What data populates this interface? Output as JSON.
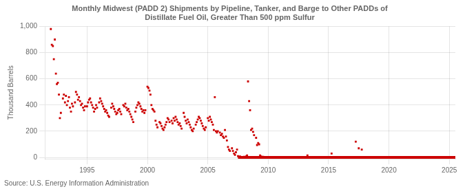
{
  "chart_data": {
    "type": "scatter",
    "title": "Monthly Midwest (PADD 2) Shipments by Pipeline, Tanker, and Barge to Other PADDs of\nDistillate Fuel Oil, Greater Than 500 ppm Sulfur",
    "ylabel": "Thousand Barrels",
    "source": "Source: U.S. Energy Information Administration",
    "xlim": [
      1991.5,
      2025.5
    ],
    "ylim": [
      -10,
      1000
    ],
    "xticks": [
      1995,
      2000,
      2005,
      2010,
      2015,
      2020,
      2025
    ],
    "yticks": [
      0,
      200,
      400,
      600,
      800,
      {
        "value": 1000,
        "label": "1,000"
      }
    ],
    "grid": true,
    "series": [
      {
        "type": "scatter",
        "marker": "square",
        "color": "#cc0000",
        "x": [
          1992.0,
          1992.08,
          1992.17,
          1992.25,
          1992.33,
          1992.42,
          1992.5,
          1992.58,
          1992.67,
          1992.75,
          1992.83,
          1993.0,
          1993.08,
          1993.17,
          1993.25,
          1993.33,
          1993.42,
          1993.5,
          1993.58,
          1993.67,
          1993.75,
          1993.83,
          1994.0,
          1994.08,
          1994.17,
          1994.25,
          1994.33,
          1994.42,
          1994.5,
          1994.58,
          1994.67,
          1994.75,
          1994.83,
          1995.0,
          1995.08,
          1995.17,
          1995.25,
          1995.33,
          1995.42,
          1995.5,
          1995.58,
          1995.67,
          1995.75,
          1995.83,
          1996.0,
          1996.08,
          1996.17,
          1996.25,
          1996.33,
          1996.42,
          1996.5,
          1996.58,
          1996.67,
          1996.75,
          1996.83,
          1997.0,
          1997.08,
          1997.17,
          1997.25,
          1997.33,
          1997.42,
          1997.5,
          1997.58,
          1997.67,
          1997.75,
          1997.83,
          1998.0,
          1998.08,
          1998.17,
          1998.25,
          1998.33,
          1998.42,
          1998.5,
          1998.58,
          1998.67,
          1998.75,
          1998.83,
          1999.0,
          1999.08,
          1999.17,
          1999.25,
          1999.33,
          1999.42,
          1999.5,
          1999.58,
          1999.67,
          1999.75,
          1999.83,
          2000.0,
          2000.08,
          2000.17,
          2000.25,
          2000.33,
          2000.42,
          2000.5,
          2000.58,
          2000.67,
          2000.75,
          2000.83,
          2001.0,
          2001.08,
          2001.17,
          2001.25,
          2001.33,
          2001.42,
          2001.5,
          2001.58,
          2001.67,
          2001.75,
          2001.83,
          2002.0,
          2002.08,
          2002.17,
          2002.25,
          2002.33,
          2002.42,
          2002.5,
          2002.58,
          2002.67,
          2002.75,
          2002.83,
          2003.0,
          2003.08,
          2003.17,
          2003.25,
          2003.33,
          2003.42,
          2003.5,
          2003.58,
          2003.67,
          2003.75,
          2003.83,
          2004.0,
          2004.08,
          2004.17,
          2004.25,
          2004.33,
          2004.42,
          2004.5,
          2004.58,
          2004.67,
          2004.75,
          2004.83,
          2005.0,
          2005.08,
          2005.17,
          2005.25,
          2005.33,
          2005.42,
          2005.5,
          2005.58,
          2005.67,
          2005.75,
          2005.83,
          2006.0,
          2006.08,
          2006.17,
          2006.25,
          2006.33,
          2006.42,
          2006.5,
          2006.58,
          2006.67,
          2006.75,
          2006.83,
          2007.0,
          2007.08,
          2007.17,
          2007.25,
          2007.33,
          2007.42,
          2007.5,
          2007.58,
          2007.67,
          2007.75,
          2007.83,
          2008.0,
          2008.08,
          2008.17,
          2008.25,
          2008.33,
          2008.42,
          2008.5,
          2008.58,
          2008.67,
          2008.75,
          2008.83,
          2009.0,
          2009.08,
          2009.17,
          2009.25,
          2009.33,
          2009.42,
          2009.5,
          2009.58,
          2009.67,
          2009.75,
          2009.83,
          2010.0,
          2010.5,
          2011.0,
          2011.5,
          2012.0,
          2012.5,
          2013.0,
          2013.25,
          2013.5,
          2013.75,
          2014.0,
          2014.5,
          2015.0,
          2015.25,
          2015.5,
          2016.0,
          2016.5,
          2017.0,
          2017.25,
          2017.5,
          2017.75,
          2018.0,
          2018.5,
          2019.0,
          2019.5,
          2020.0,
          2020.5,
          2021.0,
          2021.5,
          2022.0,
          2022.5,
          2023.0,
          2023.5,
          2024.0,
          2024.5
        ],
        "values": [
          980,
          860,
          850,
          750,
          900,
          640,
          560,
          570,
          480,
          300,
          340,
          450,
          480,
          420,
          470,
          400,
          430,
          460,
          380,
          350,
          410,
          390,
          420,
          500,
          480,
          440,
          460,
          430,
          400,
          410,
          380,
          360,
          390,
          390,
          420,
          440,
          450,
          420,
          400,
          380,
          350,
          370,
          400,
          380,
          420,
          450,
          430,
          410,
          390,
          370,
          350,
          360,
          340,
          320,
          310,
          380,
          410,
          390,
          370,
          350,
          330,
          340,
          360,
          370,
          350,
          330,
          400,
          390,
          410,
          380,
          360,
          370,
          350,
          330,
          310,
          290,
          270,
          350,
          380,
          400,
          420,
          410,
          390,
          370,
          350,
          360,
          340,
          360,
          540,
          530,
          510,
          480,
          400,
          370,
          360,
          350,
          280,
          250,
          230,
          270,
          260,
          240,
          220,
          210,
          230,
          250,
          270,
          300,
          290,
          270,
          280,
          260,
          300,
          280,
          310,
          290,
          270,
          250,
          260,
          240,
          220,
          340,
          310,
          280,
          260,
          290,
          270,
          250,
          230,
          210,
          200,
          220,
          250,
          270,
          290,
          310,
          300,
          280,
          260,
          240,
          220,
          210,
          230,
          300,
          280,
          310,
          290,
          270,
          250,
          210,
          460,
          200,
          190,
          200,
          190,
          170,
          180,
          160,
          150,
          210,
          160,
          130,
          80,
          60,
          50,
          70,
          50,
          30,
          20,
          40,
          60,
          10,
          5,
          8,
          3,
          2,
          5,
          3,
          8,
          15,
          580,
          430,
          360,
          210,
          220,
          195,
          170,
          150,
          95,
          110,
          100,
          15,
          8,
          3,
          5,
          2,
          1,
          0,
          0,
          0,
          0,
          0,
          0,
          0,
          0,
          15,
          0,
          0,
          0,
          0,
          0,
          30,
          0,
          0,
          0,
          0,
          120,
          70,
          60,
          0,
          0,
          0,
          0,
          0,
          0,
          0,
          0,
          0,
          0,
          0,
          0,
          0,
          0
        ]
      },
      {
        "type": "line",
        "color": "#cc0000",
        "x": [
          2007.5,
          2025.5
        ],
        "values": [
          0,
          0
        ]
      }
    ]
  }
}
